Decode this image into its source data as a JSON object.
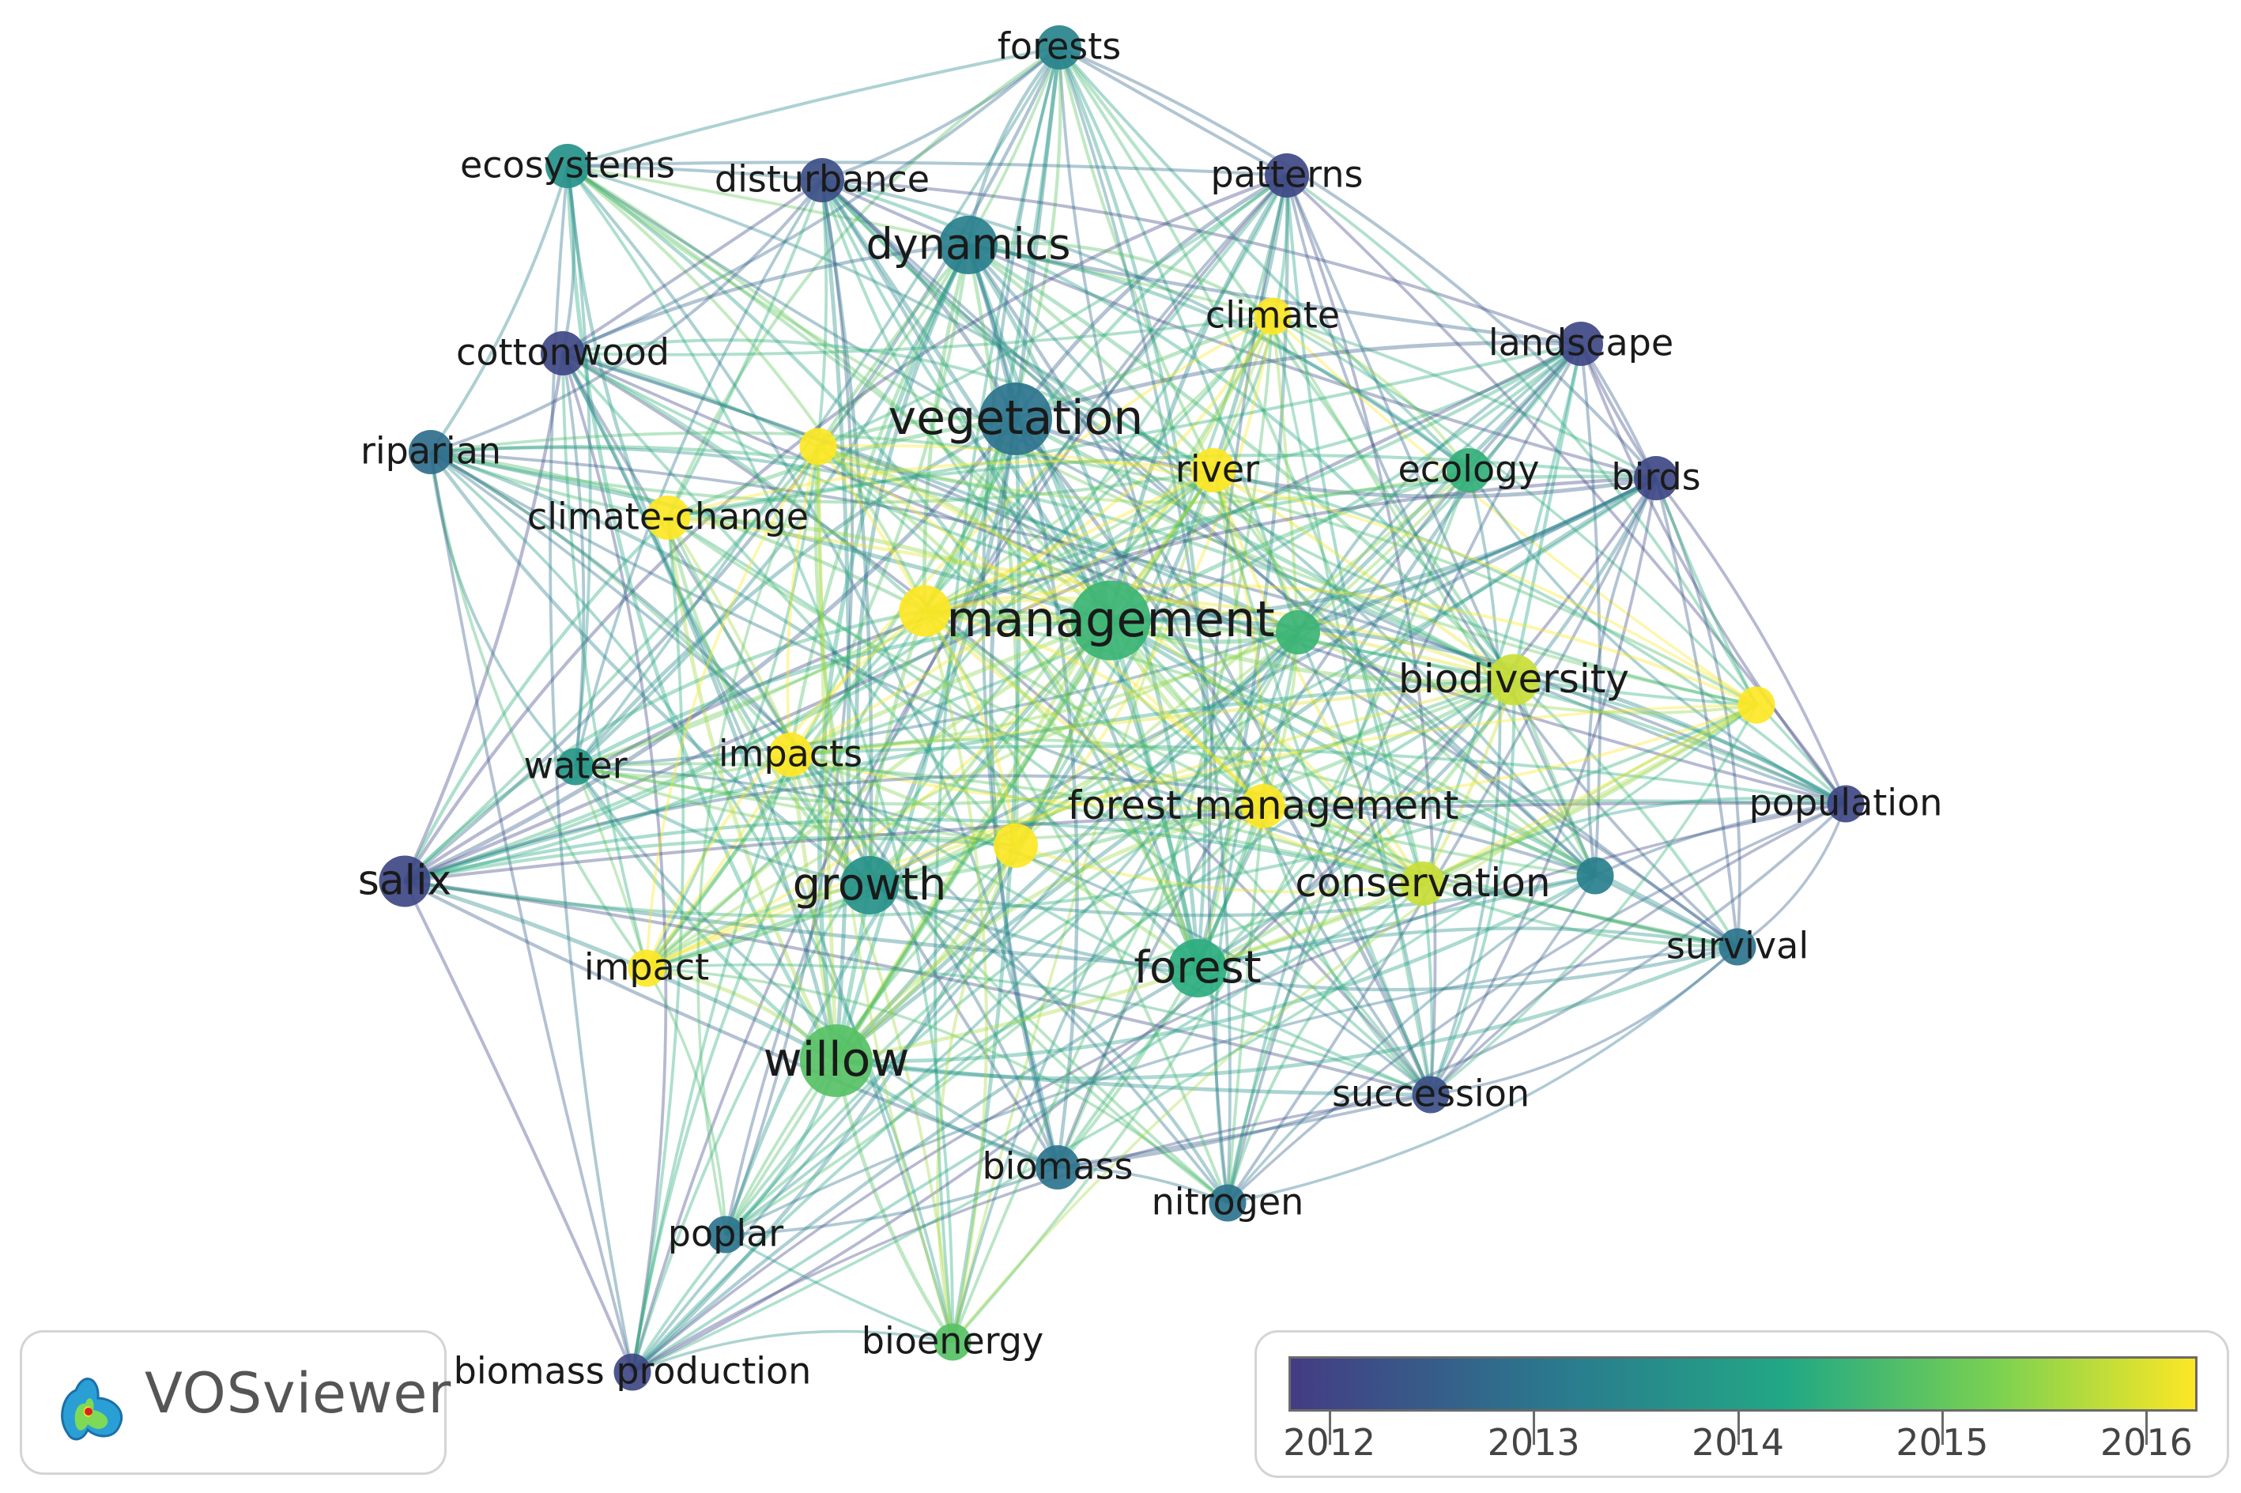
{
  "network": {
    "nodes": [
      {
        "id": "forests",
        "label": "forests",
        "year": 2013.2,
        "weight": 2
      },
      {
        "id": "ecosystems",
        "label": "ecosystems",
        "year": 2013.5,
        "weight": 2
      },
      {
        "id": "disturbance",
        "label": "disturbance",
        "year": 2012.3,
        "weight": 2
      },
      {
        "id": "patterns",
        "label": "patterns",
        "year": 2012.2,
        "weight": 2
      },
      {
        "id": "dynamics",
        "label": "dynamics",
        "year": 2013.1,
        "weight": 3
      },
      {
        "id": "climate",
        "label": "climate",
        "year": 2016.1,
        "weight": 1.5
      },
      {
        "id": "cottonwood",
        "label": "cottonwood",
        "year": 2012.2,
        "weight": 2
      },
      {
        "id": "landscape",
        "label": "landscape",
        "year": 2012.2,
        "weight": 2
      },
      {
        "id": "riparian",
        "label": "riparian",
        "year": 2012.8,
        "weight": 2
      },
      {
        "id": "vegetation",
        "label": "vegetation",
        "year": 2012.9,
        "weight": 4
      },
      {
        "id": "river",
        "label": "river",
        "year": 2016.1,
        "weight": 2
      },
      {
        "id": "ecology",
        "label": "ecology",
        "year": 2014.2,
        "weight": 2
      },
      {
        "id": "birds",
        "label": "birds",
        "year": 2012.2,
        "weight": 2
      },
      {
        "id": "climate-change",
        "label": "climate-change",
        "year": 2016.0,
        "weight": 2
      },
      {
        "id": "management",
        "label": "management",
        "year": 2014.3,
        "weight": 4.5
      },
      {
        "id": "biodiversity",
        "label": "biodiversity",
        "year": 2015.6,
        "weight": 2.5
      },
      {
        "id": "impacts",
        "label": "impacts",
        "year": 2016.0,
        "weight": 2
      },
      {
        "id": "water",
        "label": "water",
        "year": 2013.6,
        "weight": 1.5
      },
      {
        "id": "forest-management",
        "label": "forest management",
        "year": 2016.0,
        "weight": 2
      },
      {
        "id": "population",
        "label": "population",
        "year": 2012.2,
        "weight": 1.5
      },
      {
        "id": "salix",
        "label": "salix",
        "year": 2012.2,
        "weight": 2.5
      },
      {
        "id": "growth",
        "label": "growth",
        "year": 2013.5,
        "weight": 3
      },
      {
        "id": "conservation",
        "label": "conservation",
        "year": 2015.6,
        "weight": 2
      },
      {
        "id": "impact",
        "label": "impact",
        "year": 2016.0,
        "weight": 1.5
      },
      {
        "id": "forest",
        "label": "forest",
        "year": 2014.1,
        "weight": 3
      },
      {
        "id": "survival",
        "label": "survival",
        "year": 2012.9,
        "weight": 1.5
      },
      {
        "id": "willow",
        "label": "willow",
        "year": 2014.6,
        "weight": 4
      },
      {
        "id": "succession",
        "label": "succession",
        "year": 2012.3,
        "weight": 1.5
      },
      {
        "id": "biomass",
        "label": "biomass",
        "year": 2012.9,
        "weight": 2
      },
      {
        "id": "nitrogen",
        "label": "nitrogen",
        "year": 2012.9,
        "weight": 1.5
      },
      {
        "id": "poplar",
        "label": "poplar",
        "year": 2012.9,
        "weight": 1.5
      },
      {
        "id": "bioenergy",
        "label": "bioenergy",
        "year": 2014.6,
        "weight": 1.5
      },
      {
        "id": "biomass-production",
        "label": "biomass production",
        "year": 2012.2,
        "weight": 1.5
      },
      {
        "id": "u1",
        "label": "",
        "year": 2016.1,
        "weight": 1.5
      },
      {
        "id": "u2",
        "label": "",
        "year": 2016.1,
        "weight": 2.5
      },
      {
        "id": "u3",
        "label": "",
        "year": 2014.3,
        "weight": 2
      },
      {
        "id": "u4",
        "label": "",
        "year": 2016.1,
        "weight": 1.5
      },
      {
        "id": "u5",
        "label": "",
        "year": 2016.1,
        "weight": 2
      },
      {
        "id": "u6",
        "label": "",
        "year": 2013.1,
        "weight": 1.5
      }
    ]
  },
  "legend": {
    "ticks": [
      "2012",
      "2013",
      "2014",
      "2015",
      "2016"
    ],
    "min_year": 2011.8,
    "max_year": 2016.25
  },
  "logo": {
    "text": "VOSviewer"
  },
  "colors": {
    "c2012": "#443c84",
    "c2013": "#2a7a8e",
    "c2014": "#22a884",
    "c2015": "#7ad151",
    "c2016": "#fde725"
  }
}
